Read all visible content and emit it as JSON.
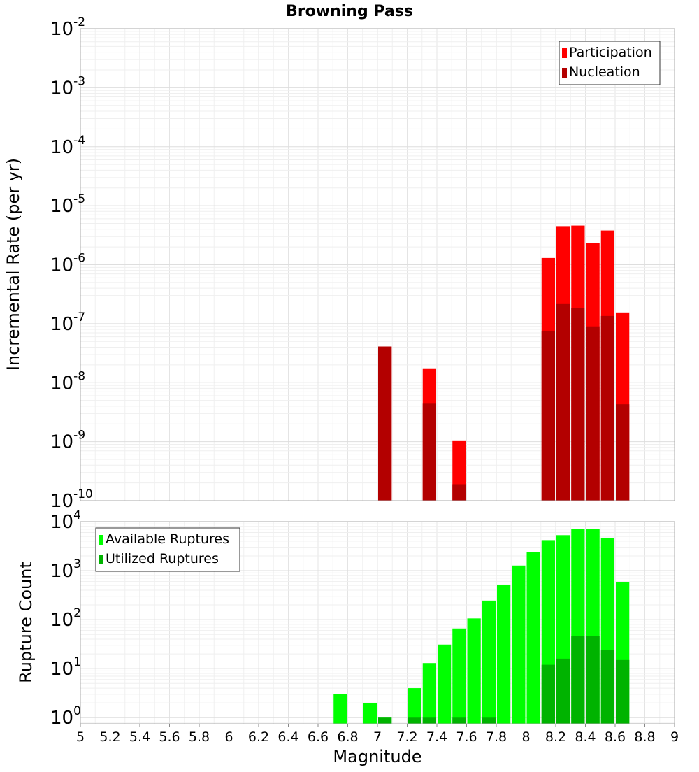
{
  "chart_data": [
    {
      "type": "bar",
      "title": "Browning Pass",
      "xlabel": "",
      "ylabel": "Incremental Rate (per yr)",
      "yscale": "log",
      "xlim": [
        5,
        9
      ],
      "ylim": [
        1e-10,
        0.01
      ],
      "ytick_exponents": [
        -10,
        -9,
        -8,
        -7,
        -6,
        -5,
        -4,
        -3,
        -2
      ],
      "grid": true,
      "legend_position": "top-right",
      "bin_width": 0.1,
      "series": [
        {
          "name": "Participation",
          "color": "#ff0000",
          "points": [
            {
              "x": 7.05,
              "y": 4.1e-08
            },
            {
              "x": 7.35,
              "y": 1.75e-08
            },
            {
              "x": 7.55,
              "y": 1.05e-09
            },
            {
              "x": 8.15,
              "y": 1.3e-06
            },
            {
              "x": 8.25,
              "y": 4.5e-06
            },
            {
              "x": 8.35,
              "y": 4.6e-06
            },
            {
              "x": 8.45,
              "y": 2.3e-06
            },
            {
              "x": 8.55,
              "y": 3.8e-06
            },
            {
              "x": 8.65,
              "y": 1.55e-07
            }
          ]
        },
        {
          "name": "Nucleation",
          "color": "#b30000",
          "points": [
            {
              "x": 7.05,
              "y": 4.1e-08
            },
            {
              "x": 7.35,
              "y": 4.4e-09
            },
            {
              "x": 7.55,
              "y": 1.9e-10
            },
            {
              "x": 8.15,
              "y": 7.6e-08
            },
            {
              "x": 8.25,
              "y": 2.15e-07
            },
            {
              "x": 8.35,
              "y": 1.85e-07
            },
            {
              "x": 8.45,
              "y": 9e-08
            },
            {
              "x": 8.55,
              "y": 1.35e-07
            },
            {
              "x": 8.65,
              "y": 4.3e-09
            }
          ]
        }
      ]
    },
    {
      "type": "bar",
      "title": "",
      "xlabel": "Magnitude",
      "ylabel": "Rupture Count",
      "yscale": "log",
      "xlim": [
        5,
        9
      ],
      "ylim": [
        0.75,
        10000
      ],
      "ytick_exponents": [
        0,
        1,
        2,
        3,
        4
      ],
      "xticks": [
        "5",
        "5.2",
        "5.4",
        "5.6",
        "5.8",
        "6",
        "6.2",
        "6.4",
        "6.6",
        "6.8",
        "7",
        "7.2",
        "7.4",
        "7.6",
        "7.8",
        "8",
        "8.2",
        "8.4",
        "8.6",
        "8.8",
        "9"
      ],
      "grid": true,
      "legend_position": "top-left",
      "bin_width": 0.1,
      "series": [
        {
          "name": "Available Ruptures",
          "color": "#00ff00",
          "points": [
            {
              "x": 6.75,
              "y": 3
            },
            {
              "x": 6.95,
              "y": 2
            },
            {
              "x": 7.05,
              "y": 1
            },
            {
              "x": 7.25,
              "y": 4
            },
            {
              "x": 7.35,
              "y": 13
            },
            {
              "x": 7.45,
              "y": 31
            },
            {
              "x": 7.55,
              "y": 66
            },
            {
              "x": 7.65,
              "y": 106
            },
            {
              "x": 7.75,
              "y": 245
            },
            {
              "x": 7.85,
              "y": 520
            },
            {
              "x": 7.95,
              "y": 1270
            },
            {
              "x": 8.05,
              "y": 2400
            },
            {
              "x": 8.15,
              "y": 4200
            },
            {
              "x": 8.25,
              "y": 5300
            },
            {
              "x": 8.35,
              "y": 7000
            },
            {
              "x": 8.45,
              "y": 7000
            },
            {
              "x": 8.55,
              "y": 4700
            },
            {
              "x": 8.65,
              "y": 580
            }
          ]
        },
        {
          "name": "Utilized Ruptures",
          "color": "#00b300",
          "points": [
            {
              "x": 7.05,
              "y": 1
            },
            {
              "x": 7.25,
              "y": 1
            },
            {
              "x": 7.35,
              "y": 1
            },
            {
              "x": 7.55,
              "y": 1
            },
            {
              "x": 7.75,
              "y": 1
            },
            {
              "x": 8.15,
              "y": 12
            },
            {
              "x": 8.25,
              "y": 16
            },
            {
              "x": 8.35,
              "y": 46
            },
            {
              "x": 8.45,
              "y": 47
            },
            {
              "x": 8.55,
              "y": 24
            },
            {
              "x": 8.65,
              "y": 15
            }
          ]
        }
      ]
    }
  ]
}
